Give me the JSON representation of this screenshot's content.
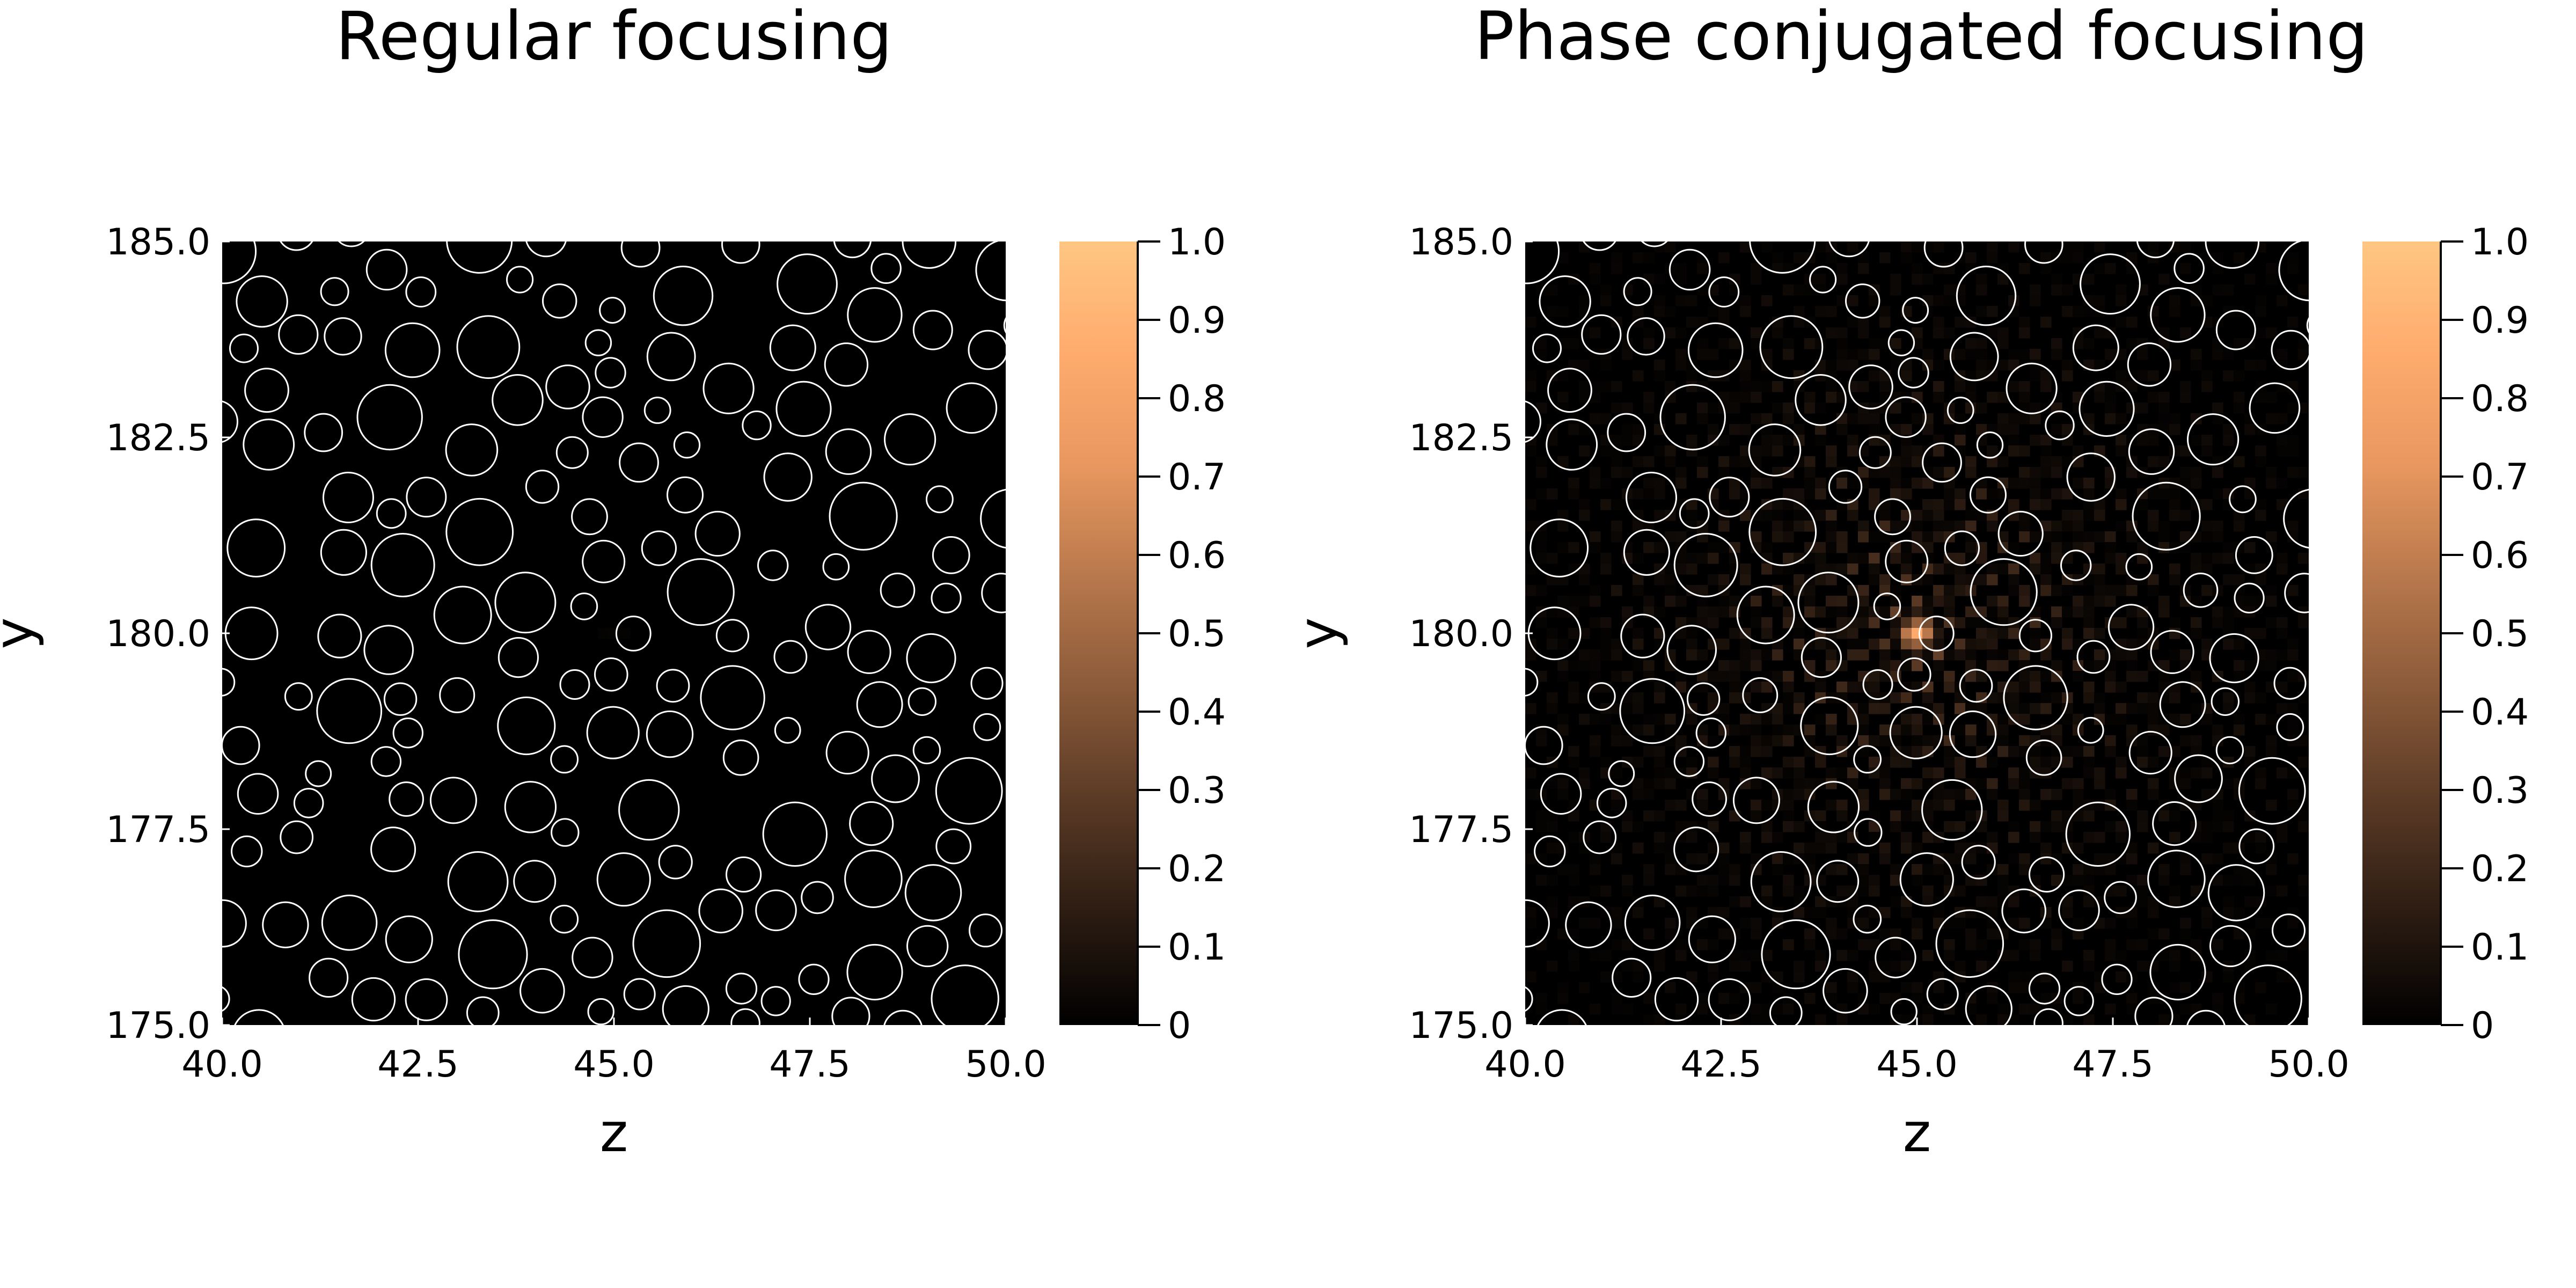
{
  "figure": {
    "background": "#ffffff",
    "circle_stroke": "#ffffff"
  },
  "colorbar": {
    "colormap": "copper",
    "range": [
      0,
      1.0
    ],
    "tick_labels": [
      "0",
      "0.1",
      "0.2",
      "0.3",
      "0.4",
      "0.5",
      "0.6",
      "0.7",
      "0.8",
      "0.9",
      "1.0"
    ],
    "colors": [
      "#000000",
      "#2c1c12",
      "#5a3a25",
      "#8a5a39",
      "#b8784c",
      "#e8975f",
      "#ffab6e",
      "#ffc682"
    ]
  },
  "chart_data": [
    {
      "type": "heatmap",
      "title": "Regular focusing",
      "xlabel": "z",
      "ylabel": "y",
      "xlim": [
        40.0,
        50.0
      ],
      "ylim": [
        175.0,
        185.0
      ],
      "x_ticks": [
        "40.0",
        "42.5",
        "45.0",
        "47.5",
        "50.0"
      ],
      "y_ticks": [
        "175.0",
        "177.5",
        "180.0",
        "182.5",
        "185.0"
      ],
      "focus": {
        "z": 45.0,
        "y": 180.0,
        "peak": 0.0
      },
      "field_max": 0.02,
      "scatterers": "circular particles (outlined in white) randomly distributed in the domain"
    },
    {
      "type": "heatmap",
      "title": "Phase conjugated focusing",
      "xlabel": "z",
      "ylabel": "y",
      "xlim": [
        40.0,
        50.0
      ],
      "ylim": [
        175.0,
        185.0
      ],
      "x_ticks": [
        "40.0",
        "42.5",
        "45.0",
        "47.5",
        "50.0"
      ],
      "y_ticks": [
        "175.0",
        "177.5",
        "180.0",
        "182.5",
        "185.0"
      ],
      "focus": {
        "z": 45.0,
        "y": 180.0,
        "peak": 0.85
      },
      "field_max": 0.85,
      "scatterers": "circular particles (outlined in white) randomly distributed in the domain"
    }
  ]
}
